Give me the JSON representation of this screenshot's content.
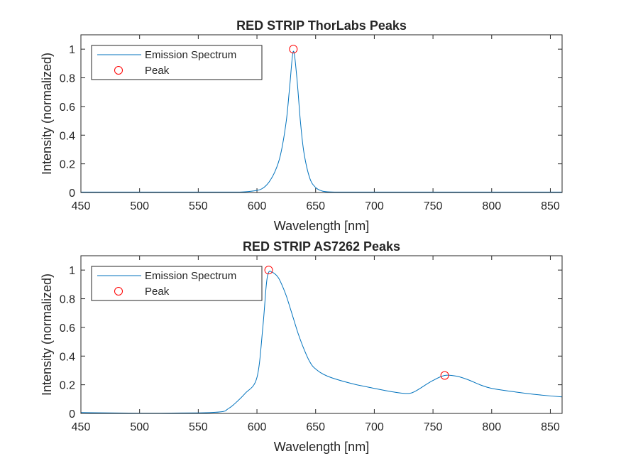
{
  "chart_data": [
    {
      "type": "line",
      "title": "RED STRIP ThorLabs Peaks",
      "xlabel": "Wavelength [nm]",
      "ylabel": "Intensity (normalized)",
      "xlim": [
        450,
        860
      ],
      "ylim": [
        0,
        1.1
      ],
      "xticks": [
        "450",
        "500",
        "550",
        "600",
        "650",
        "700",
        "750",
        "800",
        "850"
      ],
      "yticks": [
        "0",
        "0.2",
        "0.4",
        "0.6",
        "0.8",
        "1"
      ],
      "legend": {
        "location": "top-left",
        "entries": [
          "Emission Spectrum",
          "Peak"
        ]
      },
      "series": [
        {
          "name": "Emission Spectrum",
          "color": "#0072BD",
          "x": [
            450,
            500,
            550,
            580,
            590,
            600,
            605,
            610,
            615,
            620,
            625,
            628,
            631,
            634,
            637,
            640,
            645,
            650,
            655,
            660,
            670,
            700,
            750,
            800,
            860
          ],
          "y": [
            0.003,
            0.003,
            0.003,
            0.003,
            0.005,
            0.015,
            0.03,
            0.07,
            0.14,
            0.26,
            0.5,
            0.75,
            0.985,
            0.8,
            0.5,
            0.28,
            0.1,
            0.035,
            0.012,
            0.005,
            0.003,
            0.003,
            0.003,
            0.003,
            0.003
          ]
        },
        {
          "name": "Peak",
          "color": "#FF0000",
          "marker": "circle",
          "x": [
            631
          ],
          "y": [
            1.0
          ]
        }
      ]
    },
    {
      "type": "line",
      "title": "RED STRIP AS7262 Peaks",
      "xlabel": "Wavelength [nm]",
      "ylabel": "Intensity (normalized)",
      "xlim": [
        450,
        860
      ],
      "ylim": [
        0,
        1.1
      ],
      "xticks": [
        "450",
        "500",
        "550",
        "600",
        "650",
        "700",
        "750",
        "800",
        "850"
      ],
      "yticks": [
        "0",
        "0.2",
        "0.4",
        "0.6",
        "0.8",
        "1"
      ],
      "legend": {
        "location": "top-left",
        "entries": [
          "Emission Spectrum",
          "Peak"
        ]
      },
      "series": [
        {
          "name": "Emission Spectrum",
          "color": "#0072BD",
          "x": [
            450,
            500,
            550,
            570,
            575,
            580,
            590,
            600,
            605,
            608,
            610,
            613,
            617,
            620,
            625,
            630,
            635,
            640,
            645,
            650,
            660,
            680,
            700,
            720,
            730,
            735,
            740,
            750,
            760,
            770,
            780,
            790,
            800,
            820,
            840,
            860
          ],
          "y": [
            0.006,
            0.002,
            0.004,
            0.012,
            0.03,
            0.06,
            0.14,
            0.25,
            0.6,
            0.9,
            0.985,
            0.985,
            0.96,
            0.92,
            0.82,
            0.69,
            0.56,
            0.45,
            0.36,
            0.31,
            0.26,
            0.21,
            0.175,
            0.145,
            0.14,
            0.155,
            0.18,
            0.23,
            0.265,
            0.26,
            0.235,
            0.2,
            0.175,
            0.15,
            0.13,
            0.115
          ]
        },
        {
          "name": "Peak",
          "color": "#FF0000",
          "marker": "circle",
          "x": [
            610,
            760
          ],
          "y": [
            1.0,
            0.265
          ]
        }
      ]
    }
  ]
}
